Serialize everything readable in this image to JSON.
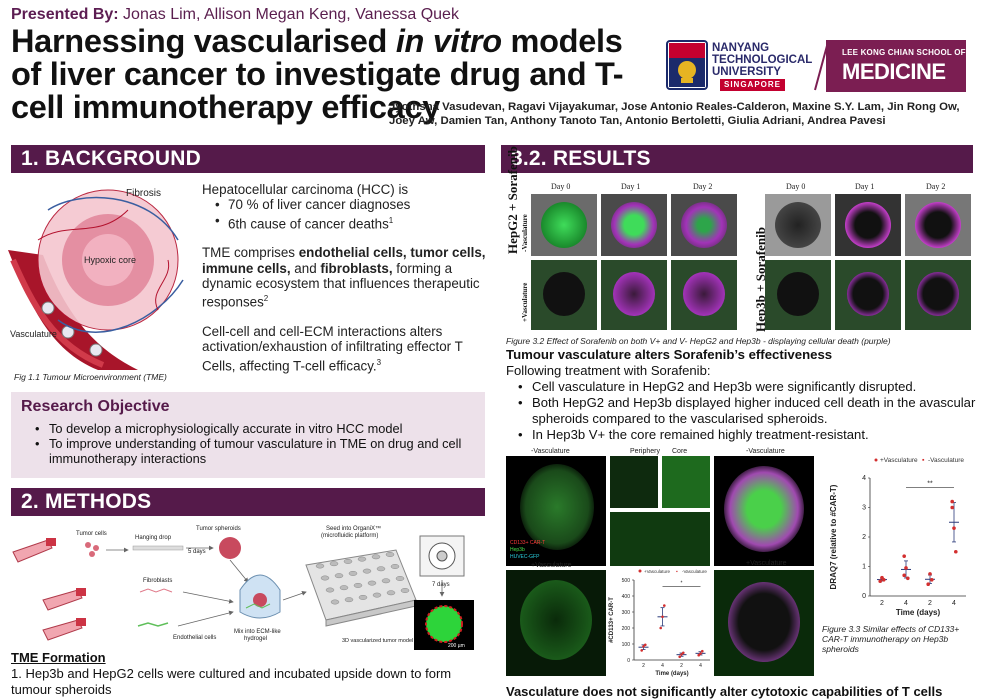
{
  "header": {
    "presented_label": "Presented By:",
    "presenters": "Jonas Lim, Allison Megan Keng, Vanessa Quek",
    "title_part1": "Harnessing vascularised ",
    "title_italic": "in vitro",
    "title_part2": " models of liver cancer to investigate drug and T-cell immunotherapy efficacy",
    "authors": "Jyothsna Vasudevan, Ragavi Vijayakumar, Jose Antonio Reales-Calderon, Maxine S.Y. Lam, Jin Rong Ow, Joey Aw, Damien Tan, Anthony Tanoto Tan, Antonio Bertoletti, Giulia Adriani, Andrea Pavesi",
    "ntu_line1": "NANYANG",
    "ntu_line2": "TECHNOLOGICAL",
    "ntu_line3": "UNIVERSITY",
    "ntu_line4": "SINGAPORE",
    "lkc_line1": "LEE KONG CHIAN SCHOOL OF",
    "lkc_line2": "MEDICINE"
  },
  "background": {
    "heading": "1. BACKGROUND",
    "fig_labels": {
      "fibrosis": "Fibrosis",
      "hypoxic": "Hypoxic core",
      "vasculature": "Vasculature"
    },
    "fig_caption": "Fig 1.1 Tumour Microenvironment (TME)",
    "p1": "Hepatocellular carcinoma (HCC) is",
    "bullet1": "70 % of liver cancer diagnoses",
    "bullet2": "6th cause of cancer deaths",
    "bullet2_sup": "1",
    "p2_a": "TME comprises ",
    "p2_b": "endothelial cells, tumor cells, immune cells,",
    "p2_c": " and ",
    "p2_d": "fibroblasts,",
    "p2_e": " forming a dynamic ecosystem that influences therapeutic responses",
    "p2_sup": "2",
    "p3": "Cell-cell and cell-ECM interactions alters activation/exhaustion of infiltrating effector T Cells, affecting T-cell efficacy.",
    "p3_sup": "3"
  },
  "objective": {
    "heading": "Research Objective",
    "items": [
      "To develop a microphysiologically accurate in vitro HCC model",
      "To improve understanding of tumour vasculature in TME on drug and cell immunotherapy interactions"
    ]
  },
  "methods": {
    "heading": "2. METHODS",
    "labels": {
      "tumor_cells": "Tumor cells",
      "hanging_drop": "Hanging drop",
      "days5": "5 days",
      "spheroids": "Tumor spheroids",
      "seed": "Seed into OrganiX™",
      "micro": "(microfluidic platform)",
      "fibroblasts": "Fibroblasts",
      "endothelial": "Endothelial cells",
      "mix": "Mix into ECM-like",
      "hydrogel": "hydrogel",
      "days7": "7 days",
      "model": "3D vascularized tumor model",
      "scale": "200 µm"
    },
    "tme_heading": "TME Formation",
    "tme_item": "1. Hep3b and HepG2 cells were cultured and incubated upside down to form tumour spheroids"
  },
  "results": {
    "heading": "3.2. RESULTS",
    "days": [
      "Day 0",
      "Day 1",
      "Day 2"
    ],
    "label_hepg2": "HepG2 + Sorafenib",
    "label_hep3b": "Hep3b + Sorafenib",
    "minus_vasc": "-Vasculature",
    "plus_vasc": "+Vasculature",
    "fig32_caption": "Figure 3.2  Effect of Sorafenib on both V+ and V- HepG2 and Hep3b - displaying cellular death (purple)",
    "subhead": "Tumour vasculature alters Sorafenib’s effectiveness",
    "intro": "Following treatment with Sorafenib:",
    "bullets": [
      "Cell vasculature in HepG2 and Hep3b were significantly disrupted.",
      "Both HepG2 and Hep3b displayed higher induced cell death in the avascular spheroids compared to the vascularised spheroids.",
      "In Hep3b V+ the core remained highly treatment-resistant."
    ],
    "fig33_labels": {
      "periphery": "Periphery",
      "core": "Core",
      "cd133": "CD133+ CAR-T",
      "hep3b": "Hep3b",
      "huvec": "HUVEC-GFP",
      "minus": "-Vasculature",
      "plus": "+Vasculature"
    },
    "fig33_caption": "Figure 3.3 Similar effects of CD133+ CAR-T immunotherapy on Hep3b spheroids",
    "footer_head": "Vasculature does not significantly alter cytotoxic capabilities of T cells"
  },
  "chart_data": [
    {
      "type": "scatter",
      "title": "",
      "legend": [
        "+Vasculature",
        "-Vasculature"
      ],
      "legend_position": "top",
      "xlabel": "Time (days)",
      "ylabel": "DRAQ7 (relative to #CAR-T)",
      "categories": [
        "2",
        "4",
        "2",
        "4"
      ],
      "ylim": [
        0,
        4
      ],
      "yticks": [
        0,
        1,
        2,
        3,
        4
      ],
      "significance": "**",
      "series": [
        {
          "name": "+Vasculature",
          "groups": [
            0,
            1
          ],
          "points": [
            [
              0,
              0.5
            ],
            [
              0,
              0.62
            ],
            [
              0,
              0.55
            ],
            [
              1,
              0.7
            ],
            [
              1,
              0.95
            ],
            [
              1,
              0.6
            ],
            [
              1,
              1.35
            ]
          ]
        },
        {
          "name": "-Vasculature",
          "groups": [
            2,
            3
          ],
          "points": [
            [
              2,
              0.4
            ],
            [
              2,
              0.75
            ],
            [
              2,
              0.55
            ],
            [
              3,
              3.2
            ],
            [
              3,
              2.3
            ],
            [
              3,
              1.5
            ],
            [
              3,
              3.0
            ]
          ]
        }
      ]
    },
    {
      "type": "scatter",
      "title": "",
      "legend": [
        "+Vasculature",
        "-Vasculature"
      ],
      "legend_position": "top",
      "xlabel": "Time (days)",
      "ylabel": "#CD133+ CAR-T",
      "categories": [
        "2",
        "4",
        "2",
        "4"
      ],
      "ylim": [
        0,
        500
      ],
      "yticks": [
        0,
        100,
        200,
        300,
        400,
        500
      ],
      "significance": "*",
      "series": [
        {
          "name": "+Vasculature",
          "groups": [
            0,
            1
          ],
          "points": [
            [
              0,
              60
            ],
            [
              0,
              85
            ],
            [
              0,
              95
            ],
            [
              1,
              200
            ],
            [
              1,
              270
            ],
            [
              1,
              340
            ]
          ]
        },
        {
          "name": "-Vasculature",
          "groups": [
            2,
            3
          ],
          "points": [
            [
              2,
              20
            ],
            [
              2,
              35
            ],
            [
              2,
              45
            ],
            [
              3,
              30
            ],
            [
              3,
              40
            ],
            [
              3,
              55
            ]
          ]
        }
      ]
    }
  ]
}
